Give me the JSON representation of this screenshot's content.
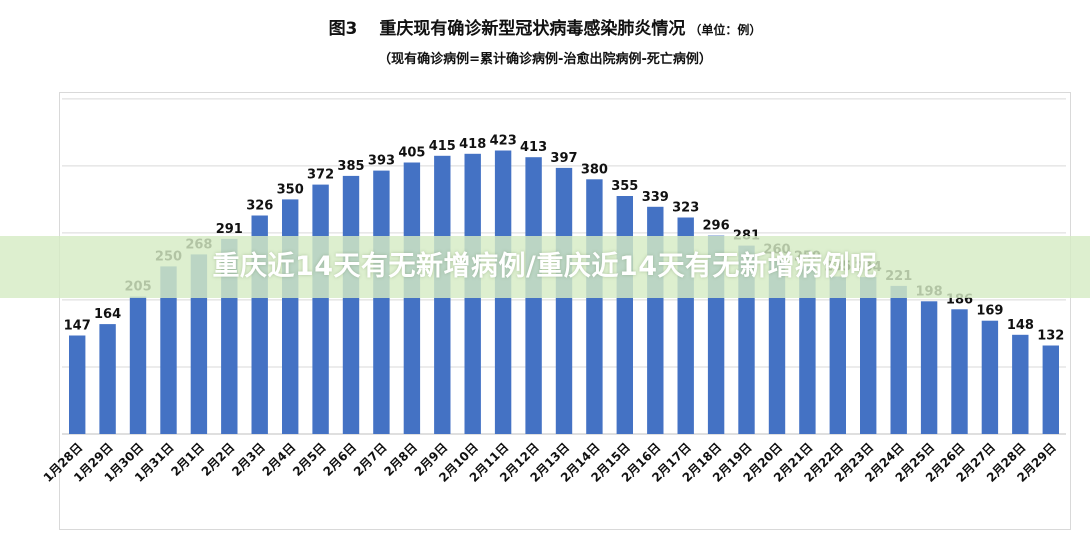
{
  "header": {
    "figure_number": "图3",
    "title": "重庆现有确诊新型冠状病毒感染肺炎情况",
    "unit": "（单位：例）",
    "subtitle": "（现有确诊病例=累计确诊病例-治愈出院病例-死亡病例）"
  },
  "banner": {
    "text": "重庆近14天有无新增病例/重庆近14天有无新增病例呢"
  },
  "colors": {
    "bar": "#4472c4",
    "gridline": "#d9d9d9",
    "text": "#111111",
    "banner_bg": "#d6ecc4"
  },
  "chart_data": {
    "type": "bar",
    "title": "重庆现有确诊新型冠状病毒感染肺炎情况",
    "subtitle": "（现有确诊病例=累计确诊病例-治愈出院病例-死亡病例）",
    "categories": [
      "1月28日",
      "1月29日",
      "1月30日",
      "1月31日",
      "2月1日",
      "2月2日",
      "2月3日",
      "2月4日",
      "2月5日",
      "2月6日",
      "2月7日",
      "2月8日",
      "2月9日",
      "2月10日",
      "2月11日",
      "2月12日",
      "2月13日",
      "2月14日",
      "2月15日",
      "2月16日",
      "2月17日",
      "2月18日",
      "2月19日",
      "2月20日",
      "2月21日",
      "2月22日",
      "2月23日",
      "2月24日",
      "2月25日",
      "2月26日",
      "2月27日",
      "2月28日",
      "2月29日"
    ],
    "values": [
      147,
      164,
      205,
      250,
      268,
      291,
      326,
      350,
      372,
      385,
      393,
      405,
      415,
      418,
      423,
      413,
      397,
      380,
      355,
      339,
      323,
      296,
      281,
      260,
      250,
      235,
      234,
      221,
      198,
      186,
      169,
      148,
      132
    ],
    "labels": [
      "147",
      "164",
      "205",
      "250",
      "268",
      "291",
      "326",
      "350",
      "372",
      "385",
      "393",
      "405",
      "415",
      "418",
      "423",
      "413",
      "397",
      "380",
      "355",
      "339",
      "323",
      "296",
      "281",
      "260",
      "250",
      "235",
      "234",
      "221",
      "198",
      "186",
      "169",
      "148",
      "132"
    ],
    "ylim": [
      0,
      500
    ],
    "grid": true,
    "legend": "none"
  }
}
